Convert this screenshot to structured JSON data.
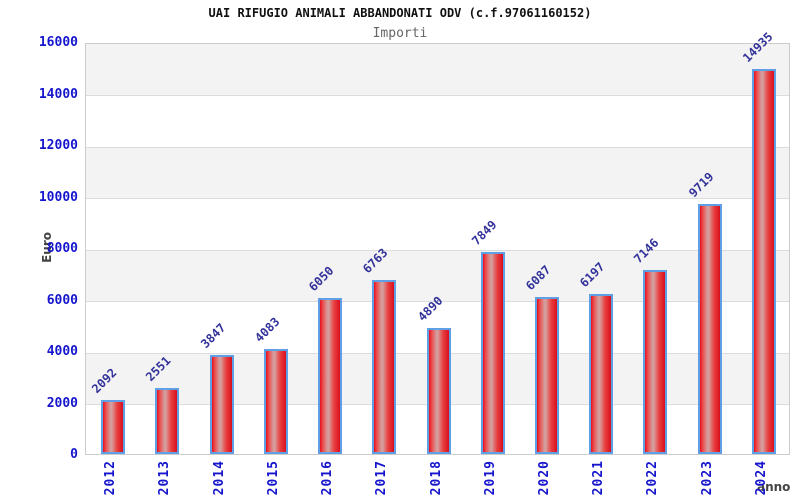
{
  "chart_data": {
    "type": "bar",
    "title": "UAI RIFUGIO ANIMALI ABBANDONATI ODV (c.f.97061160152)",
    "subtitle": "Importi",
    "xlabel": "anno",
    "ylabel": "Euro",
    "categories": [
      "2012",
      "2013",
      "2014",
      "2015",
      "2016",
      "2017",
      "2018",
      "2019",
      "2020",
      "2021",
      "2022",
      "2023",
      "2024"
    ],
    "values": [
      2092,
      2551,
      3847,
      4083,
      6050,
      6763,
      4890,
      7849,
      6087,
      6197,
      7146,
      9719,
      14935
    ],
    "ylim": [
      0,
      16000
    ],
    "yticks": [
      0,
      2000,
      4000,
      6000,
      8000,
      10000,
      12000,
      14000,
      16000
    ],
    "grid": true,
    "legend": "none",
    "layout_hints": {
      "bands": "alternating horizontal bands every 2000, gray band at top",
      "value_labels": "rotated 45deg above each bar",
      "x_labels": "rotated 90deg vertical"
    },
    "colors": {
      "bar_fill": "#e6101f",
      "bar_highlight": "#d2a4a4",
      "bar_border": "#5f9fe6",
      "tick_label": "#1515cd",
      "value_label": "#32329a",
      "band_gray": "#f3f3f3",
      "gridline": "#dcdcdc",
      "plot_border": "#cccccc",
      "title": "#111111",
      "subtitle": "#666666",
      "axis_title": "#444444",
      "background": "#ffffff"
    }
  }
}
